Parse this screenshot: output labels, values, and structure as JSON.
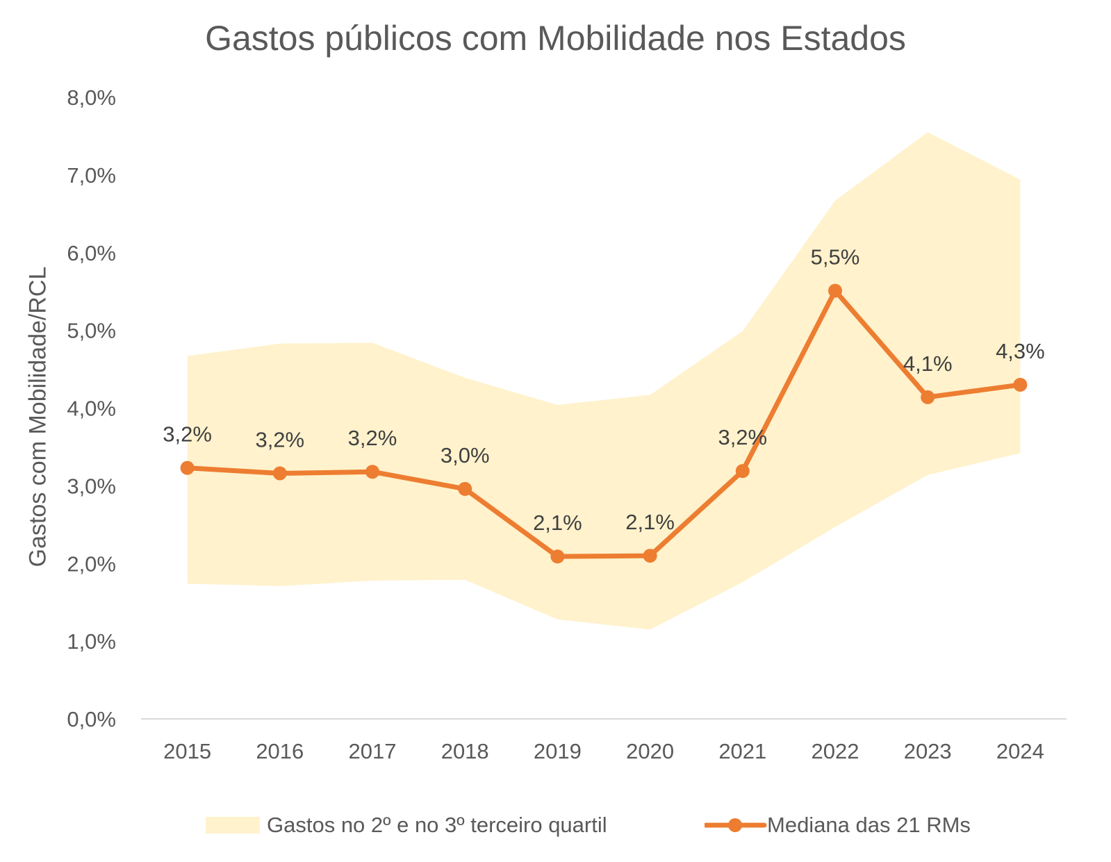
{
  "chart_data": {
    "type": "line",
    "title": "Gastos públicos com Mobilidade nos Estados",
    "ylabel": "Gastos com Mobilidade/RCL",
    "xlabel": "",
    "categories": [
      "2015",
      "2016",
      "2017",
      "2018",
      "2019",
      "2020",
      "2021",
      "2022",
      "2023",
      "2024"
    ],
    "ylim": [
      0,
      8
    ],
    "yticks": [
      0,
      1,
      2,
      3,
      4,
      5,
      6,
      7,
      8
    ],
    "ytick_labels": [
      "0,0%",
      "1,0%",
      "2,0%",
      "3,0%",
      "4,0%",
      "5,0%",
      "6,0%",
      "7,0%",
      "8,0%"
    ],
    "grid": false,
    "legend_position": "bottom",
    "series": [
      {
        "name": "Gastos no 2º e no 3º terceiro quartil",
        "type": "area-band",
        "color": "#FFF2CC",
        "lower": [
          1.74,
          1.71,
          1.78,
          1.79,
          1.28,
          1.15,
          1.76,
          2.47,
          3.14,
          3.42
        ],
        "upper": [
          4.67,
          4.83,
          4.84,
          4.39,
          4.04,
          4.17,
          4.99,
          6.67,
          7.55,
          6.94
        ]
      },
      {
        "name": "Mediana das 21 RMs",
        "type": "line",
        "color": "#ED7D31",
        "values": [
          3.23,
          3.16,
          3.18,
          2.96,
          2.09,
          2.1,
          3.19,
          5.51,
          4.14,
          4.3
        ],
        "data_labels": [
          "3,2%",
          "3,2%",
          "3,2%",
          "3,0%",
          "2,1%",
          "2,1%",
          "3,2%",
          "5,5%",
          "4,1%",
          "4,3%"
        ]
      }
    ]
  }
}
